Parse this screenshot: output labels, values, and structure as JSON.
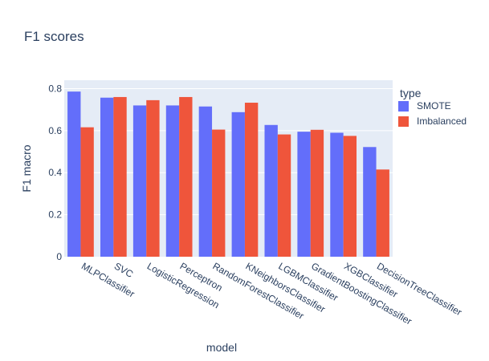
{
  "chart_data": {
    "type": "bar",
    "title": "F1 scores",
    "xlabel": "model",
    "ylabel": "F1 macro",
    "ylim": [
      0,
      0.84
    ],
    "yticks": [
      "0",
      "0.2",
      "0.4",
      "0.6",
      "0.8"
    ],
    "grid": true,
    "legend": {
      "title": "type",
      "position": "right"
    },
    "categories": [
      "MLPClassifier",
      "SVC",
      "LogisticRegression",
      "Perceptron",
      "RandomForestClassifier",
      "KNeighborsClassifier",
      "LGBMClassifier",
      "GradientBoostingClassifier",
      "XGBClassifier",
      "DecisionTreeClassifier"
    ],
    "series": [
      {
        "name": "SMOTE",
        "color": "#636efa",
        "values": [
          0.786,
          0.757,
          0.72,
          0.72,
          0.715,
          0.688,
          0.627,
          0.595,
          0.59,
          0.522
        ]
      },
      {
        "name": "Imbalanced",
        "color": "#ef553b",
        "values": [
          0.616,
          0.76,
          0.745,
          0.76,
          0.605,
          0.733,
          0.582,
          0.604,
          0.575,
          0.415
        ]
      }
    ],
    "plot_bg": "#e5ecf6",
    "grid_color": "#ffffff"
  }
}
